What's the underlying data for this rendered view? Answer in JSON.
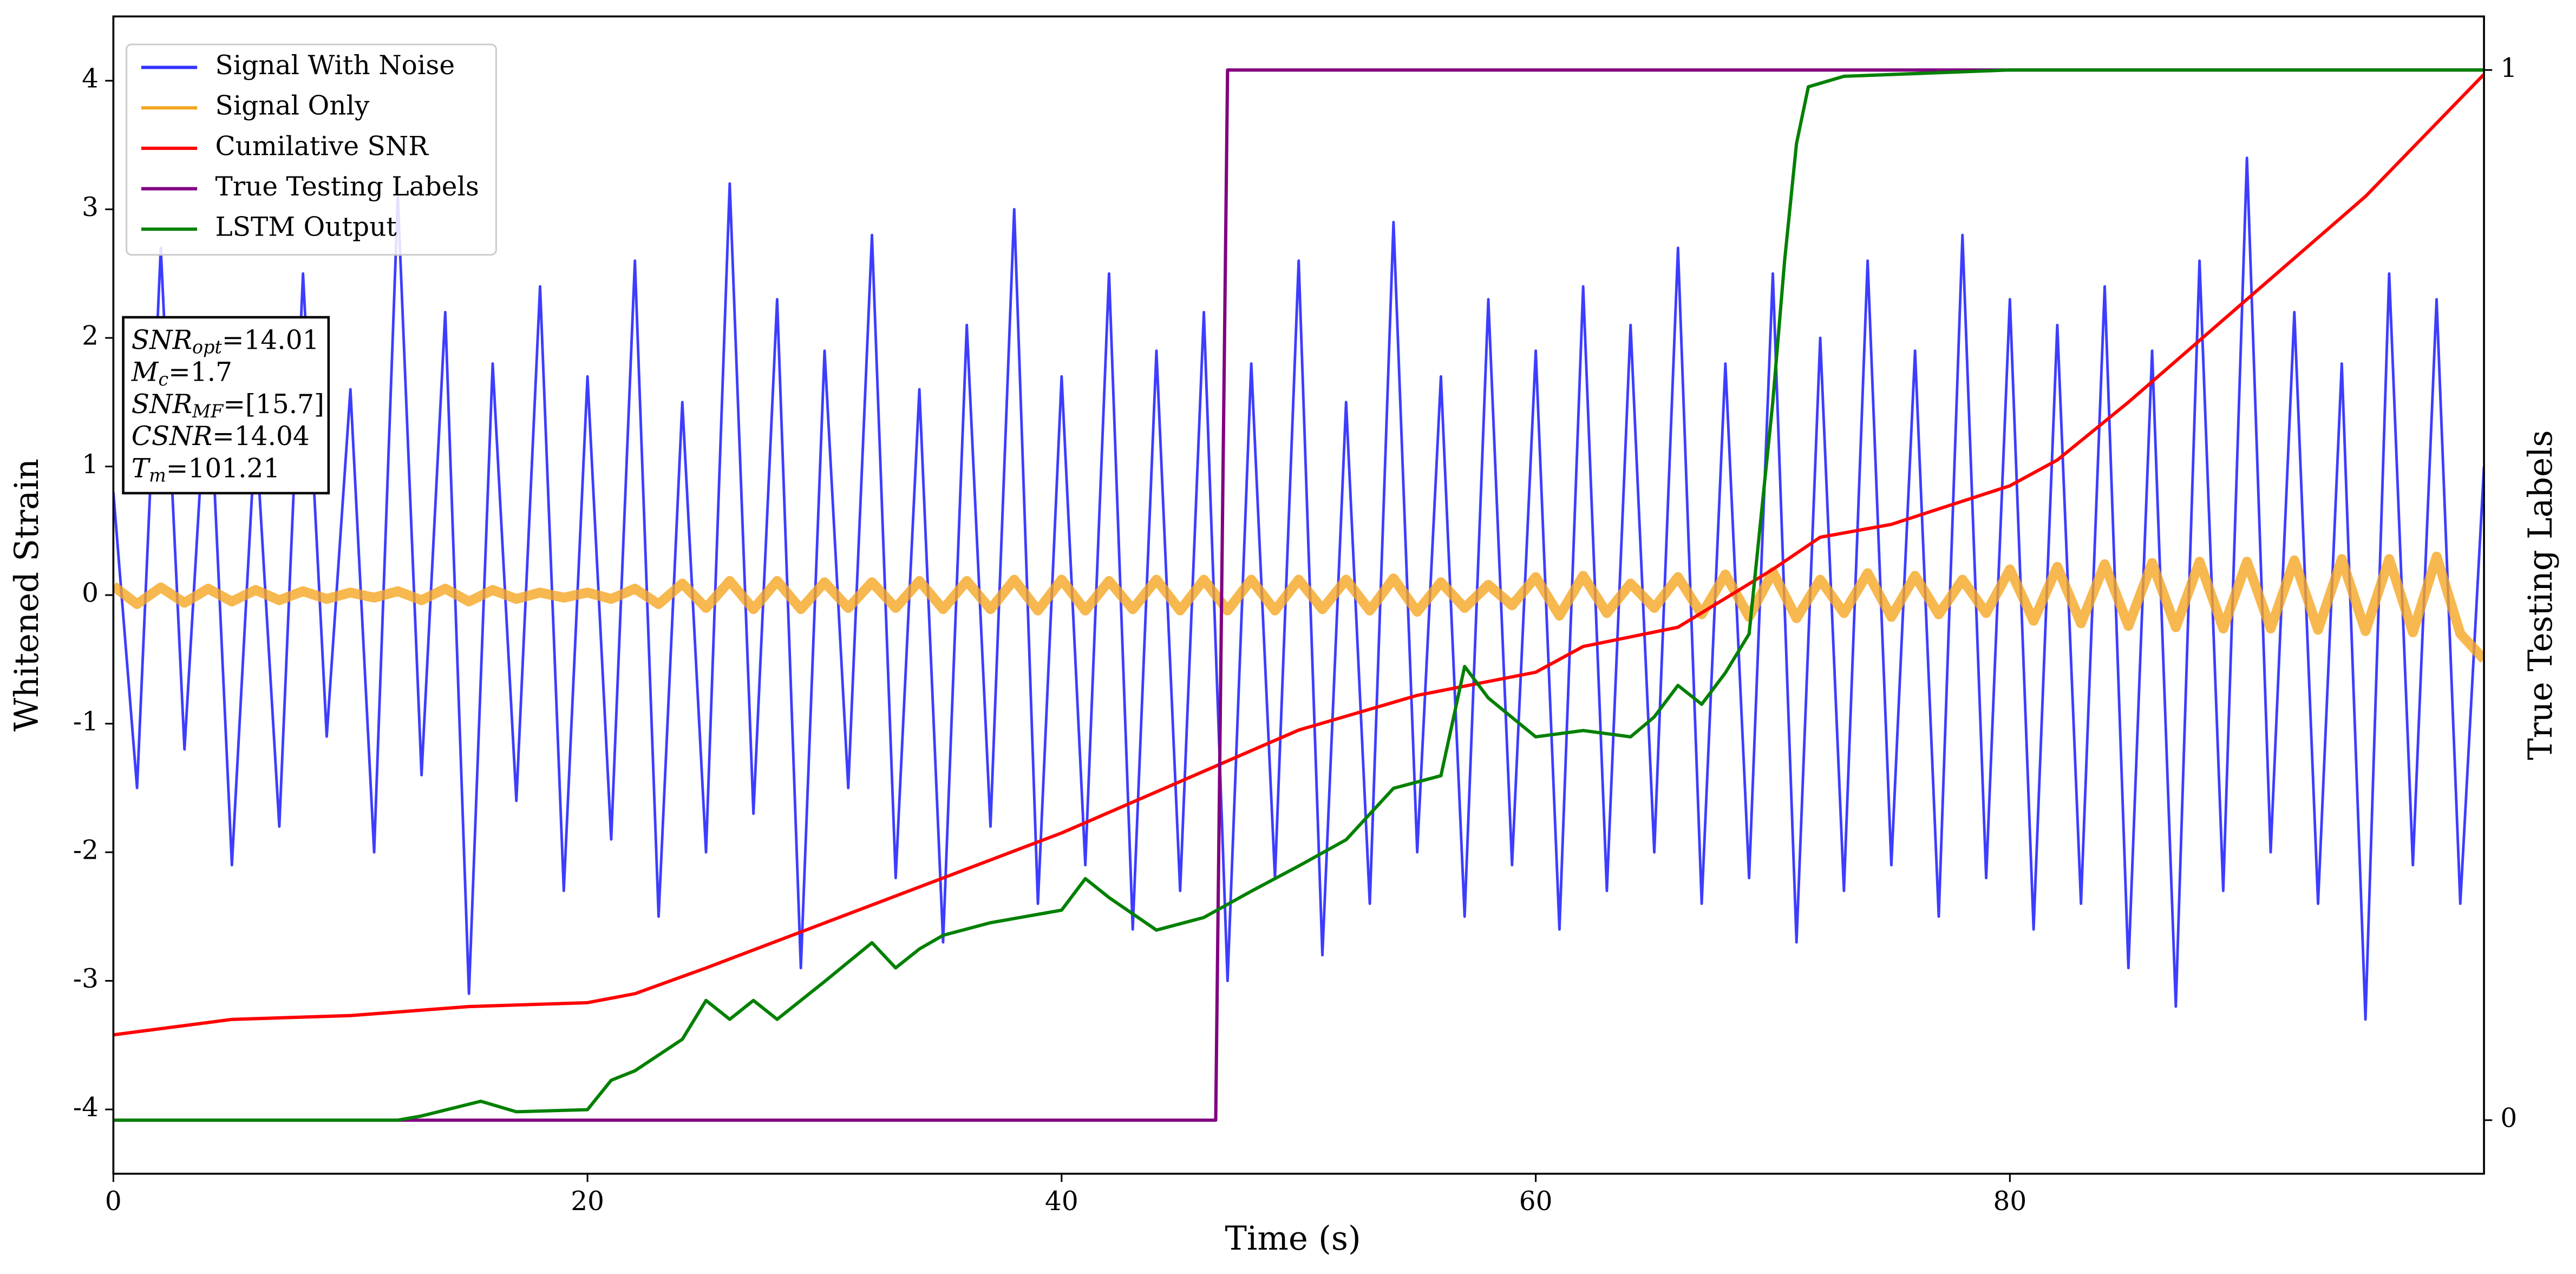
{
  "chart_data": {
    "type": "line",
    "xlabel": "Time (s)",
    "ylabel": "Whitened Strain",
    "y2label": "True Testing Labels",
    "xlim": [
      0,
      100
    ],
    "xticks": [
      0,
      20,
      40,
      60,
      80
    ],
    "ylim": [
      -4.5,
      4.5
    ],
    "yticks": [
      -4,
      -3,
      -2,
      -1,
      0,
      1,
      2,
      3,
      4
    ],
    "y2lim": [
      -0.051,
      1.051
    ],
    "y2ticks": [
      0,
      1
    ],
    "legend": "upper left",
    "annotation": [
      {
        "main": "SNR",
        "sub": "opt",
        "rest": "=14.01"
      },
      {
        "main": "M",
        "sub": "c",
        "rest": "=1.7"
      },
      {
        "main": "SNR",
        "sub": "MF",
        "rest": "=[15.7]"
      },
      {
        "main": "CSNR",
        "rest": "=14.04"
      },
      {
        "main": "T",
        "sub": "m",
        "rest": "=101.21"
      }
    ],
    "series": [
      {
        "name": "Signal With Noise",
        "color": "#3333ff",
        "width": 1.6,
        "x": [
          0,
          1,
          2,
          3,
          4,
          5,
          6,
          7,
          8,
          9,
          10,
          11,
          12,
          13,
          14,
          15,
          16,
          17,
          18,
          19,
          20,
          21,
          22,
          23,
          24,
          25,
          26,
          27,
          28,
          29,
          30,
          31,
          32,
          33,
          34,
          35,
          36,
          37,
          38,
          39,
          40,
          41,
          42,
          43,
          44,
          45,
          46,
          47,
          48,
          49,
          50,
          51,
          52,
          53,
          54,
          55,
          56,
          57,
          58,
          59,
          60,
          61,
          62,
          63,
          64,
          65,
          66,
          67,
          68,
          69,
          70,
          71,
          72,
          73,
          74,
          75,
          76,
          77,
          78,
          79,
          80,
          81,
          82,
          83,
          84,
          85,
          86,
          87,
          88,
          89,
          90,
          91,
          92,
          93,
          94,
          95,
          96,
          97,
          98,
          99,
          100
        ],
        "values": [
          0.8,
          -1.5,
          2.7,
          -1.2,
          1.9,
          -2.1,
          1.3,
          -1.8,
          2.5,
          -1.1,
          1.6,
          -2.0,
          3.1,
          -1.4,
          2.2,
          -3.1,
          1.8,
          -1.6,
          2.4,
          -2.3,
          1.7,
          -1.9,
          2.6,
          -2.5,
          1.5,
          -2.0,
          3.2,
          -1.7,
          2.3,
          -2.9,
          1.9,
          -1.5,
          2.8,
          -2.2,
          1.6,
          -2.7,
          2.1,
          -1.8,
          3.0,
          -2.4,
          1.7,
          -2.1,
          2.5,
          -2.6,
          1.9,
          -2.3,
          2.2,
          -3.0,
          1.8,
          -2.2,
          2.6,
          -2.8,
          1.5,
          -2.4,
          2.9,
          -2.0,
          1.7,
          -2.5,
          2.3,
          -2.1,
          1.9,
          -2.6,
          2.4,
          -2.3,
          2.1,
          -2.0,
          2.7,
          -2.4,
          1.8,
          -2.2,
          2.5,
          -2.7,
          2.0,
          -2.3,
          2.6,
          -2.1,
          1.9,
          -2.5,
          2.8,
          -2.2,
          2.3,
          -2.6,
          2.1,
          -2.4,
          2.4,
          -2.9,
          1.9,
          -3.2,
          2.6,
          -2.3,
          3.4,
          -2.0,
          2.2,
          -2.4,
          1.8,
          -3.3,
          2.5,
          -2.1,
          2.3,
          -2.4,
          1.0
        ]
      },
      {
        "name": "Signal Only",
        "color": "#f5a623",
        "width": 6,
        "x": [
          0,
          1,
          2,
          3,
          4,
          5,
          6,
          7,
          8,
          9,
          10,
          11,
          12,
          13,
          14,
          15,
          16,
          17,
          18,
          19,
          20,
          21,
          22,
          23,
          24,
          25,
          26,
          27,
          28,
          29,
          30,
          31,
          32,
          33,
          34,
          35,
          36,
          37,
          38,
          39,
          40,
          41,
          42,
          43,
          44,
          45,
          46,
          47,
          48,
          49,
          50,
          51,
          52,
          53,
          54,
          55,
          56,
          57,
          58,
          59,
          60,
          61,
          62,
          63,
          64,
          65,
          66,
          67,
          68,
          69,
          70,
          71,
          72,
          73,
          74,
          75,
          76,
          77,
          78,
          79,
          80,
          81,
          82,
          83,
          84,
          85,
          86,
          87,
          88,
          89,
          90,
          91,
          92,
          93,
          94,
          95,
          96,
          97,
          98,
          99,
          100
        ],
        "values": [
          0.07,
          -0.07,
          0.06,
          -0.06,
          0.05,
          -0.05,
          0.04,
          -0.04,
          0.03,
          -0.03,
          0.02,
          -0.02,
          0.03,
          -0.04,
          0.05,
          -0.05,
          0.04,
          -0.03,
          0.02,
          -0.02,
          0.02,
          -0.03,
          0.05,
          -0.07,
          0.09,
          -0.1,
          0.11,
          -0.11,
          0.11,
          -0.11,
          0.1,
          -0.1,
          0.1,
          -0.1,
          0.11,
          -0.11,
          0.11,
          -0.11,
          0.12,
          -0.12,
          0.12,
          -0.12,
          0.11,
          -0.11,
          0.12,
          -0.12,
          0.12,
          -0.12,
          0.12,
          -0.12,
          0.12,
          -0.11,
          0.12,
          -0.12,
          0.13,
          -0.13,
          0.1,
          -0.1,
          0.08,
          -0.08,
          0.14,
          -0.16,
          0.15,
          -0.14,
          0.09,
          -0.1,
          0.14,
          -0.15,
          0.16,
          -0.17,
          0.18,
          -0.18,
          0.12,
          -0.14,
          0.17,
          -0.17,
          0.15,
          -0.15,
          0.12,
          -0.14,
          0.2,
          -0.2,
          0.22,
          -0.22,
          0.24,
          -0.24,
          0.25,
          -0.25,
          0.26,
          -0.26,
          0.26,
          -0.26,
          0.27,
          -0.27,
          0.28,
          -0.28,
          0.28,
          -0.29,
          0.3,
          -0.3,
          -0.5
        ]
      },
      {
        "name": "Cumilative SNR",
        "color": "#ff0000",
        "width": 2,
        "x": [
          0,
          5,
          10,
          15,
          20,
          22,
          25,
          30,
          35,
          40,
          45,
          50,
          55,
          60,
          62,
          66,
          70,
          72,
          75,
          80,
          82,
          85,
          90,
          95,
          100
        ],
        "values": [
          -3.42,
          -3.3,
          -3.27,
          -3.2,
          -3.17,
          -3.1,
          -2.9,
          -2.55,
          -2.2,
          -1.85,
          -1.45,
          -1.05,
          -0.78,
          -0.6,
          -0.4,
          -0.25,
          0.2,
          0.45,
          0.55,
          0.85,
          1.05,
          1.5,
          2.3,
          3.1,
          4.05
        ]
      },
      {
        "name": "True Testing Labels",
        "color": "#800080",
        "width": 2,
        "axis": "y2",
        "x": [
          0,
          46.5,
          47,
          100
        ],
        "values": [
          0,
          0,
          1,
          1
        ]
      },
      {
        "name": "LSTM Output",
        "color": "#008000",
        "width": 2,
        "axis": "y2",
        "x": [
          0,
          12,
          13,
          15.5,
          17,
          20,
          21,
          22,
          24,
          25,
          26,
          27,
          28,
          30,
          32,
          33,
          34,
          35,
          37,
          40,
          41,
          42,
          44,
          46,
          48,
          50,
          52,
          54,
          56,
          57,
          58,
          60,
          62,
          64,
          65,
          66,
          67,
          68,
          69,
          70,
          70.5,
          71,
          71.5,
          73,
          80,
          100
        ],
        "values": [
          0,
          0,
          0.004,
          0.018,
          0.008,
          0.01,
          0.038,
          0.047,
          0.077,
          0.114,
          0.096,
          0.114,
          0.096,
          0.132,
          0.169,
          0.145,
          0.163,
          0.176,
          0.188,
          0.2,
          0.23,
          0.212,
          0.181,
          0.193,
          0.218,
          0.242,
          0.267,
          0.316,
          0.328,
          0.432,
          0.402,
          0.365,
          0.371,
          0.365,
          0.384,
          0.414,
          0.396,
          0.426,
          0.463,
          0.684,
          0.819,
          0.93,
          0.984,
          0.994,
          1,
          1
        ]
      }
    ]
  }
}
